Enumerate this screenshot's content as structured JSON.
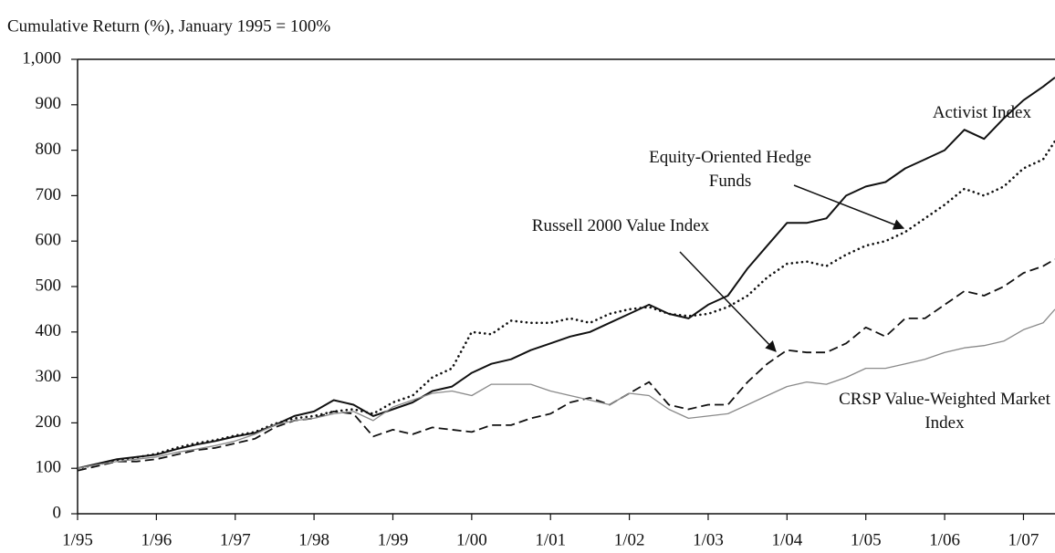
{
  "chart_data": {
    "type": "line",
    "title": "Cumulative Return (%), January 1995 = 100%",
    "x": [
      1995,
      1995.25,
      1995.5,
      1995.75,
      1996,
      1996.25,
      1996.5,
      1996.75,
      1997,
      1997.25,
      1997.5,
      1997.75,
      1998,
      1998.25,
      1998.5,
      1998.75,
      1999,
      1999.25,
      1999.5,
      1999.75,
      2000,
      2000.25,
      2000.5,
      2000.75,
      2001,
      2001.25,
      2001.5,
      2001.75,
      2002,
      2002.25,
      2002.5,
      2002.75,
      2003,
      2003.25,
      2003.5,
      2003.75,
      2004,
      2004.25,
      2004.5,
      2004.75,
      2005,
      2005.25,
      2005.5,
      2005.75,
      2006,
      2006.25,
      2006.5,
      2006.75,
      2007,
      2007.25,
      2007.4
    ],
    "series": [
      {
        "name": "Activist Index",
        "color": "#111111",
        "dash": "solid",
        "values": [
          100,
          110,
          120,
          125,
          130,
          142,
          152,
          160,
          170,
          178,
          195,
          215,
          225,
          250,
          240,
          215,
          230,
          245,
          270,
          280,
          310,
          330,
          340,
          360,
          375,
          390,
          400,
          420,
          440,
          460,
          440,
          430,
          460,
          480,
          540,
          590,
          640,
          640,
          650,
          700,
          720,
          730,
          760,
          780,
          800,
          845,
          825,
          870,
          910,
          940,
          960
        ]
      },
      {
        "name": "Equity-Oriented Hedge Funds",
        "color": "#111111",
        "dash": "dotted",
        "values": [
          100,
          108,
          118,
          124,
          132,
          145,
          155,
          162,
          172,
          180,
          198,
          210,
          215,
          225,
          230,
          220,
          245,
          260,
          300,
          320,
          400,
          395,
          425,
          420,
          420,
          430,
          420,
          440,
          450,
          455,
          440,
          435,
          440,
          455,
          480,
          520,
          550,
          555,
          545,
          570,
          590,
          600,
          620,
          650,
          680,
          715,
          700,
          720,
          760,
          780,
          820
        ]
      },
      {
        "name": "Russell 2000 Value Index",
        "color": "#111111",
        "dash": "dashed",
        "values": [
          95,
          105,
          115,
          115,
          120,
          130,
          140,
          145,
          155,
          165,
          190,
          205,
          210,
          225,
          220,
          170,
          185,
          175,
          190,
          185,
          180,
          195,
          195,
          210,
          220,
          245,
          255,
          240,
          265,
          290,
          240,
          230,
          240,
          240,
          290,
          330,
          360,
          355,
          355,
          375,
          410,
          390,
          430,
          430,
          460,
          490,
          480,
          500,
          530,
          545,
          560
        ]
      },
      {
        "name": "CRSP Value-Weighted Market Index",
        "color": "#8a8a8a",
        "dash": "thin",
        "values": [
          100,
          108,
          115,
          120,
          125,
          135,
          142,
          150,
          160,
          175,
          195,
          205,
          210,
          220,
          225,
          205,
          235,
          250,
          265,
          270,
          260,
          285,
          285,
          285,
          270,
          260,
          250,
          240,
          265,
          260,
          230,
          210,
          215,
          220,
          240,
          260,
          280,
          290,
          285,
          300,
          320,
          320,
          330,
          340,
          355,
          365,
          370,
          380,
          405,
          420,
          450
        ]
      }
    ],
    "xlim": [
      1995,
      2007.4
    ],
    "xticks": [
      {
        "value": 1995,
        "label": "1/95"
      },
      {
        "value": 1996,
        "label": "1/96"
      },
      {
        "value": 1997,
        "label": "1/97"
      },
      {
        "value": 1998,
        "label": "1/98"
      },
      {
        "value": 1999,
        "label": "1/99"
      },
      {
        "value": 2000,
        "label": "1/00"
      },
      {
        "value": 2001,
        "label": "1/01"
      },
      {
        "value": 2002,
        "label": "1/02"
      },
      {
        "value": 2003,
        "label": "1/03"
      },
      {
        "value": 2004,
        "label": "1/04"
      },
      {
        "value": 2005,
        "label": "1/05"
      },
      {
        "value": 2006,
        "label": "1/06"
      },
      {
        "value": 2007,
        "label": "1/07"
      }
    ],
    "ylim": [
      0,
      1000
    ],
    "yticks": [
      0,
      100,
      200,
      300,
      400,
      500,
      600,
      700,
      800,
      900,
      {
        "value": 1000,
        "label": "1,000"
      }
    ]
  }
}
